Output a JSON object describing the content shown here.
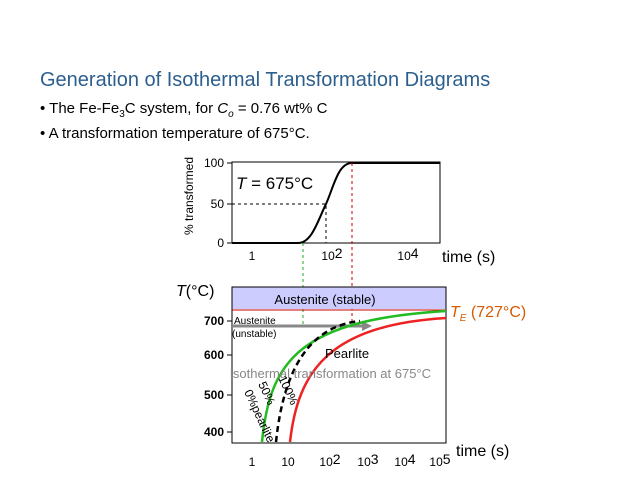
{
  "title": "Generation of Isothermal Transformation Diagrams",
  "bullets": [
    [
      "The Fe-Fe",
      "3",
      "C system, for ",
      "C",
      "o",
      " = 0.76 wt% C"
    ],
    [
      "A transformation temperature of 675°C."
    ]
  ],
  "top_plot": {
    "y_label": "% transformed",
    "annotation": [
      "T",
      " = 675°C"
    ],
    "yticks": [
      "100",
      "50",
      "0"
    ],
    "xticks": [
      [
        "1"
      ],
      [
        "10",
        "2"
      ],
      [
        "10",
        "4"
      ]
    ],
    "x_label": "time (s)"
  },
  "bottom_plot": {
    "y_label": [
      "T",
      "(°C)"
    ],
    "yticks": [
      "700",
      "600",
      "500",
      "400"
    ],
    "xticks": [
      [
        "1"
      ],
      [
        "10"
      ],
      [
        "10",
        "2"
      ],
      [
        "10",
        "3"
      ],
      [
        "10",
        "4"
      ],
      [
        "10",
        "5"
      ]
    ],
    "x_label": "time (s)",
    "stable": "Austenite (stable)",
    "unstable": [
      "Austenite",
      "(unstable)"
    ],
    "pearlite": "Pearlite",
    "te_label": [
      "T",
      "E",
      " (727°C)"
    ],
    "isothermal": "isothermal transformation at 675°C",
    "curve_labels": [
      "0%pearlite",
      "50%",
      "100%"
    ]
  }
}
